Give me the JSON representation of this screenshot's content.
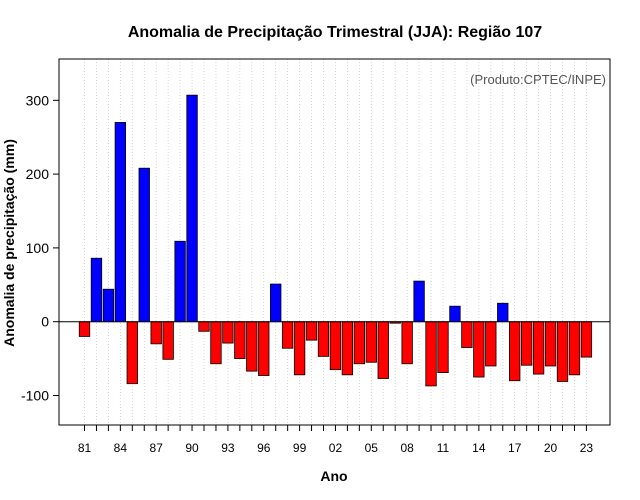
{
  "chart_data": {
    "type": "bar",
    "title": "Anomalia de Precipitação Trimestral (JJA): Região 107",
    "xlabel": "Ano",
    "ylabel": "Anomalia de precipitação (mm)",
    "credit": "(Produto:CPTEC/INPE)",
    "ylim": [
      -140,
      356
    ],
    "yticks": [
      -100,
      0,
      100,
      200,
      300
    ],
    "grid": "vertical-dotted",
    "positive_color": "#0000ff",
    "negative_color": "#ff0000",
    "categories": [
      "81",
      "82",
      "83",
      "84",
      "85",
      "86",
      "87",
      "88",
      "89",
      "90",
      "91",
      "92",
      "93",
      "94",
      "95",
      "96",
      "97",
      "98",
      "99",
      "00",
      "01",
      "02",
      "03",
      "04",
      "05",
      "06",
      "07",
      "08",
      "09",
      "10",
      "11",
      "12",
      "13",
      "14",
      "15",
      "16",
      "17",
      "18",
      "19",
      "20",
      "21",
      "22",
      "23"
    ],
    "tick_labels": [
      "81",
      "84",
      "87",
      "90",
      "93",
      "96",
      "99",
      "02",
      "05",
      "08",
      "11",
      "14",
      "17",
      "20",
      "23"
    ],
    "values": [
      -20,
      86,
      44,
      270,
      -84,
      208,
      -30,
      -51,
      109,
      307,
      -13,
      -57,
      -29,
      -50,
      -67,
      -73,
      51,
      -36,
      -72,
      -25,
      -47,
      -65,
      -72,
      -57,
      -55,
      -77,
      -2,
      -57,
      55,
      -87,
      -69,
      21,
      -35,
      -75,
      -60,
      25,
      -80,
      -59,
      -71,
      -60,
      -81,
      -72,
      -48
    ]
  }
}
